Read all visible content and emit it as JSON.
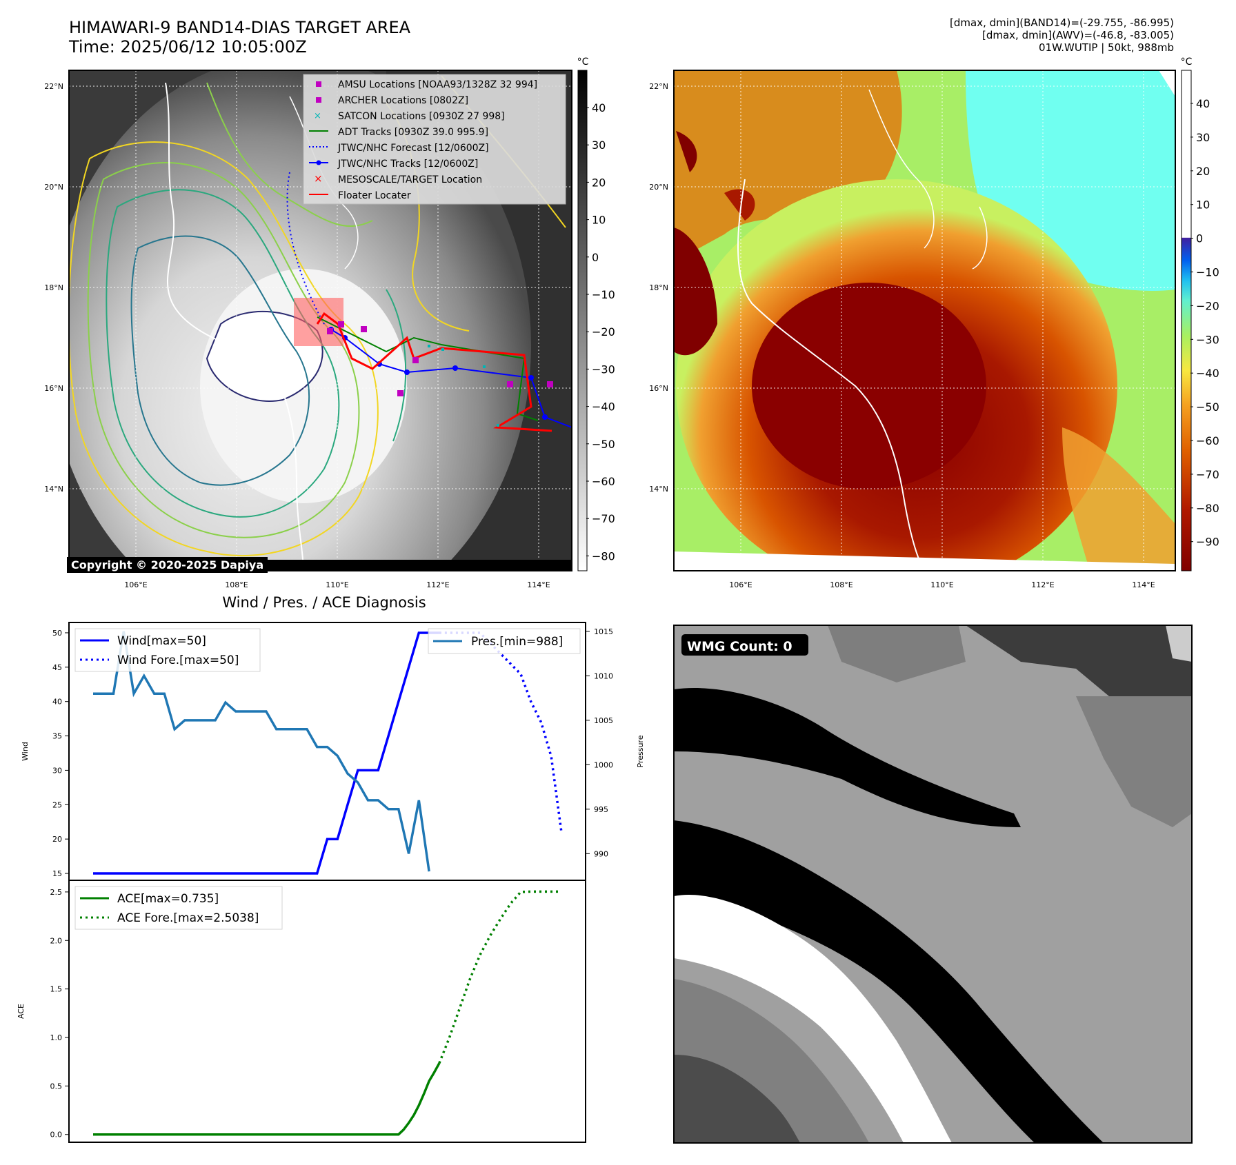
{
  "header": {
    "title": "HIMAWARI-9 BAND14-DIAS TARGET AREA",
    "time": "Time: 2025/06/12 10:05:00Z",
    "info_line1": "[dmax, dmin](BAND14)=(-29.755, -86.995)",
    "info_line2": "[dmax, dmin](AWV)=(-46.8, -83.005)",
    "info_line3": "01W.WUTIP | 50kt, 988mb"
  },
  "map_left": {
    "lon_ticks": [
      "106°E",
      "108°E",
      "110°E",
      "112°E",
      "114°E"
    ],
    "lat_ticks": [
      "22°N",
      "20°N",
      "18°N",
      "16°N",
      "14°N"
    ],
    "colorbar_unit": "°C",
    "colorbar_ticks": [
      "40",
      "30",
      "20",
      "10",
      "0",
      "−10",
      "−20",
      "−30",
      "−40",
      "−50",
      "−60",
      "−70",
      "−80"
    ],
    "legend": [
      {
        "label": "AMSU Locations [NOAA93/1328Z 32 994]",
        "color": "#c000c0",
        "marker": "square"
      },
      {
        "label": "ARCHER Locations [0802Z]",
        "color": "#c000c0",
        "marker": "square"
      },
      {
        "label": "SATCON Locations [0930Z 27 998]",
        "color": "#00b5b5",
        "marker": "x"
      },
      {
        "label": "ADT Tracks [0930Z 39.0 995.9]",
        "color": "#008000",
        "marker": "line"
      },
      {
        "label": "JTWC/NHC Forecast [12/0600Z]",
        "color": "#0000ff",
        "marker": "dotted"
      },
      {
        "label": "JTWC/NHC Tracks [12/0600Z]",
        "color": "#0000ff",
        "marker": "line-dot"
      },
      {
        "label": "MESOSCALE/TARGET Location",
        "color": "#ff0000",
        "marker": "x"
      },
      {
        "label": "Floater Locater",
        "color": "#ff0000",
        "marker": "line"
      }
    ],
    "copyright": "Copyright © 2020-2025 Dapiya"
  },
  "map_right": {
    "lon_ticks": [
      "106°E",
      "108°E",
      "110°E",
      "112°E",
      "114°E"
    ],
    "lat_ticks": [
      "22°N",
      "20°N",
      "18°N",
      "16°N",
      "14°N"
    ],
    "colorbar_unit": "°C",
    "colorbar_ticks": [
      "40",
      "30",
      "20",
      "10",
      "0",
      "−10",
      "−20",
      "−30",
      "−40",
      "−50",
      "−60",
      "−70",
      "−80",
      "−90"
    ]
  },
  "chart_data": [
    {
      "type": "line",
      "title": "Wind / Pres. / ACE Diagnosis",
      "ylabel": "Wind",
      "ylabel_right": "Pressure",
      "ylim": [
        14,
        51.5
      ],
      "ylim_right": [
        987,
        1016
      ],
      "y_ticks": [
        15,
        20,
        25,
        30,
        35,
        40,
        45,
        50
      ],
      "y_ticks_right": [
        990,
        995,
        1000,
        1005,
        1010,
        1015
      ],
      "x_index_range": [
        0,
        46
      ],
      "series": [
        {
          "name": "Wind[max=50]",
          "axis": "left",
          "style": "solid",
          "color": "#0000ff",
          "x": [
            0,
            1,
            2,
            3,
            4,
            5,
            6,
            7,
            8,
            9,
            10,
            11,
            12,
            13,
            14,
            15,
            16,
            17,
            18,
            19,
            20,
            21,
            22,
            23,
            24,
            25,
            26,
            27,
            28,
            29,
            30,
            31,
            32,
            33,
            34
          ],
          "values": [
            15,
            15,
            15,
            15,
            15,
            15,
            15,
            15,
            15,
            15,
            15,
            15,
            15,
            15,
            15,
            15,
            15,
            15,
            15,
            15,
            15,
            15,
            15,
            20,
            20,
            25,
            30,
            30,
            30,
            35,
            40,
            45,
            50,
            50,
            50
          ]
        },
        {
          "name": "Wind Fore.[max=50]",
          "axis": "left",
          "style": "dotted",
          "color": "#0000ff",
          "x": [
            34,
            36,
            38,
            40,
            42,
            43,
            44,
            45,
            46
          ],
          "values": [
            50,
            50,
            50,
            47,
            44,
            40,
            37,
            32,
            21
          ]
        },
        {
          "name": "Pres.[min=988]",
          "axis": "right",
          "style": "solid",
          "color": "#1f77b4",
          "x": [
            0,
            1,
            2,
            3,
            4,
            5,
            6,
            7,
            8,
            9,
            10,
            11,
            12,
            13,
            14,
            15,
            16,
            17,
            18,
            19,
            20,
            21,
            22,
            23,
            24,
            25,
            26,
            27,
            28,
            29,
            30,
            31,
            32,
            33
          ],
          "values": [
            1008,
            1008,
            1008,
            1015,
            1008,
            1010,
            1008,
            1008,
            1004,
            1005,
            1005,
            1005,
            1005,
            1007,
            1006,
            1006,
            1006,
            1006,
            1004,
            1004,
            1004,
            1004,
            1002,
            1002,
            1001,
            999,
            998,
            996,
            996,
            995,
            995,
            990,
            996,
            988
          ]
        }
      ]
    },
    {
      "type": "line",
      "ylabel": "ACE",
      "ylim": [
        -0.08,
        2.62
      ],
      "y_ticks": [
        0.0,
        0.5,
        1.0,
        1.5,
        2.0,
        2.5
      ],
      "x_index_range": [
        0,
        46
      ],
      "series": [
        {
          "name": "ACE[max=0.735]",
          "style": "solid",
          "color": "#008000",
          "x": [
            0,
            5,
            10,
            15,
            20,
            25,
            30,
            30.5,
            31,
            31.5,
            32,
            32.5,
            33,
            33.5,
            34
          ],
          "values": [
            0,
            0,
            0,
            0,
            0,
            0,
            0,
            0.05,
            0.12,
            0.2,
            0.3,
            0.42,
            0.55,
            0.64,
            0.735
          ]
        },
        {
          "name": "ACE Fore.[max=2.5038]",
          "style": "dotted",
          "color": "#008000",
          "x": [
            34,
            35,
            36,
            37,
            38,
            39,
            40,
            41,
            42,
            43,
            44,
            45,
            46
          ],
          "values": [
            0.735,
            1.0,
            1.3,
            1.6,
            1.85,
            2.05,
            2.22,
            2.38,
            2.5,
            2.5038,
            2.5038,
            2.5038,
            2.5038
          ]
        }
      ]
    }
  ],
  "wmg": {
    "badge": "WMG Count: 0"
  }
}
